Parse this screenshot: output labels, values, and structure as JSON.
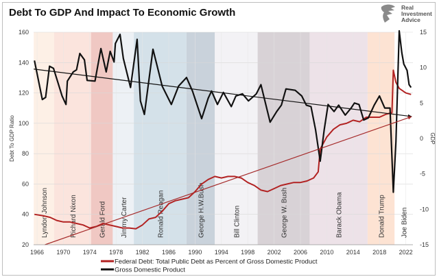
{
  "logo": {
    "lines": [
      "Real",
      "Investment",
      "Advice"
    ]
  },
  "chart_data": {
    "type": "line",
    "title": "Debt To GDP And Impact To Economic Growth",
    "ylabel": "Debt To GDP Ratio",
    "y2label": "GDP",
    "xlim": [
      1965.5,
      2023.1
    ],
    "ylim": [
      20,
      160
    ],
    "y2lim": [
      -15,
      15
    ],
    "xticks": [
      1966,
      1970,
      1974,
      1978,
      1982,
      1986,
      1990,
      1994,
      1998,
      2002,
      2006,
      2010,
      2014,
      2018,
      2022
    ],
    "yticks": [
      20,
      40,
      60,
      80,
      100,
      120,
      140,
      160
    ],
    "y2ticks": [
      -15,
      -10,
      -5,
      0,
      5,
      10,
      15
    ],
    "grid": true,
    "legend_position": "bottom",
    "presidents": [
      {
        "name": "Lyndon Johnson",
        "start": 1965.5,
        "end": 1968.6,
        "color": "#fdf0e6"
      },
      {
        "name": "Richard Nixon",
        "start": 1968.6,
        "end": 1974.2,
        "color": "#fbe4dd"
      },
      {
        "name": "Gerald Ford",
        "start": 1974.2,
        "end": 1977.5,
        "color": "#f0c8c3"
      },
      {
        "name": "Jimmy Carter",
        "start": 1977.5,
        "end": 1980.7,
        "color": "#edf1f5"
      },
      {
        "name": "Ronald Reagan",
        "start": 1980.7,
        "end": 1988.7,
        "color": "#d4e1e9"
      },
      {
        "name": "George H.W.Bush",
        "start": 1988.7,
        "end": 1993.0,
        "color": "#c9d2db"
      },
      {
        "name": "Bill Clinton",
        "start": 1993.0,
        "end": 1999.5,
        "color": "#f3f2f5"
      },
      {
        "name": "George W. Bush",
        "start": 1999.5,
        "end": 2007.4,
        "color": "#d8d2d6"
      },
      {
        "name": "Barack Obama",
        "start": 2007.4,
        "end": 2016.2,
        "color": "#ede2e8"
      },
      {
        "name": "Donald Trump",
        "start": 2016.2,
        "end": 2020.3,
        "color": "#fde3d3"
      },
      {
        "name": "Joe Biden",
        "start": 2020.3,
        "end": 2023.1,
        "color": "#ffffff"
      }
    ],
    "series": [
      {
        "name": "Federal Debt: Total Public Debt as Percent of Gross Domestic Product",
        "axis": "left",
        "color": "#b22222",
        "x": [
          1965.6,
          1967,
          1968,
          1969,
          1970,
          1971,
          1972,
          1973,
          1974,
          1975,
          1976,
          1977,
          1978,
          1979,
          1980,
          1981,
          1982,
          1983,
          1984,
          1985,
          1986,
          1987,
          1988,
          1989,
          1990,
          1991,
          1992,
          1993,
          1994,
          1995,
          1996,
          1997,
          1998,
          1999,
          2000,
          2001,
          2002,
          2003,
          2004,
          2005,
          2006,
          2007,
          2008,
          2008.7,
          2009,
          2010,
          2011,
          2012,
          2013,
          2014,
          2015,
          2016,
          2017,
          2018,
          2019,
          2019.9,
          2020.1,
          2020.5,
          2021,
          2022,
          2022.8
        ],
        "y": [
          40,
          39,
          38,
          36,
          35,
          35,
          34,
          33,
          31,
          32,
          34,
          33,
          32,
          31,
          31,
          30.5,
          33,
          37,
          38,
          42,
          47,
          49,
          50,
          51,
          55,
          60,
          63,
          65,
          64,
          65,
          65,
          64,
          61,
          59,
          56,
          55,
          57,
          59,
          60,
          61,
          61,
          62,
          64,
          68,
          83,
          91,
          96,
          99,
          100,
          102,
          101,
          104,
          104,
          104,
          106,
          107,
          135,
          127,
          123,
          120,
          119
        ]
      },
      {
        "name": "Gross Domestic Product",
        "axis": "right",
        "color": "#111111",
        "x": [
          1965.6,
          1966.8,
          1967.3,
          1967.9,
          1968.5,
          1969.1,
          1969.8,
          1970.4,
          1970.6,
          1971.5,
          1972,
          1972.5,
          1973.2,
          1973.6,
          1974.8,
          1975.7,
          1976.5,
          1977.1,
          1977.7,
          1977.9,
          1978.6,
          1979.1,
          1980.2,
          1981.2,
          1981.7,
          1982.3,
          1983.6,
          1985,
          1986.4,
          1987.5,
          1988.7,
          1989.6,
          1991,
          1992,
          1992.5,
          1993.4,
          1994.3,
          1995.5,
          1996.2,
          1997.2,
          1998.1,
          1999.3,
          2000,
          2001.4,
          2002.4,
          2003.1,
          2003.8,
          2005.2,
          2006.2,
          2006.9,
          2007.6,
          2008.3,
          2009,
          2009.6,
          2010.2,
          2011.1,
          2011.8,
          2012.8,
          2013.7,
          2014.2,
          2014.9,
          2015.6,
          2016.3,
          2017.2,
          2018,
          2018.8,
          2019.6,
          2020.1,
          2020.5,
          2021,
          2021.4,
          2021.7,
          2022.2,
          2022.5,
          2022.8
        ],
        "y": [
          11.0,
          5.5,
          5.8,
          10.2,
          9.9,
          8.1,
          6.0,
          4.8,
          8.1,
          9.4,
          9.7,
          12.0,
          11.1,
          8.2,
          8.1,
          12.7,
          9.4,
          12.3,
          10.8,
          13.4,
          14.7,
          11.3,
          7.2,
          14.0,
          5.3,
          3.4,
          12.6,
          7.4,
          4.8,
          7.4,
          8.6,
          6.7,
          2.8,
          5.7,
          6.7,
          4.8,
          6.5,
          4.5,
          6.0,
          6.3,
          5.3,
          6.3,
          7.6,
          2.3,
          3.8,
          4.7,
          7.0,
          6.8,
          6.0,
          4.7,
          4.5,
          1.2,
          -3.2,
          1.2,
          4.8,
          3.8,
          4.7,
          3.3,
          4.3,
          5.0,
          4.8,
          2.6,
          2.9,
          4.7,
          6.0,
          4.3,
          4.3,
          -7.6,
          -0.5,
          15.5,
          12.1,
          10.5,
          9.6,
          7.6,
          7.2
        ]
      }
    ],
    "trendlines": [
      {
        "of": "Gross Domestic Product",
        "axis": "right",
        "color": "#111111",
        "from": [
          1965.5,
          9.8
        ],
        "to": [
          2022.9,
          3.1
        ]
      },
      {
        "of": "Federal Debt",
        "axis": "left",
        "color": "#a52a2a",
        "from": [
          1967.2,
          20
        ],
        "to": [
          2022.9,
          104.4
        ]
      }
    ]
  }
}
